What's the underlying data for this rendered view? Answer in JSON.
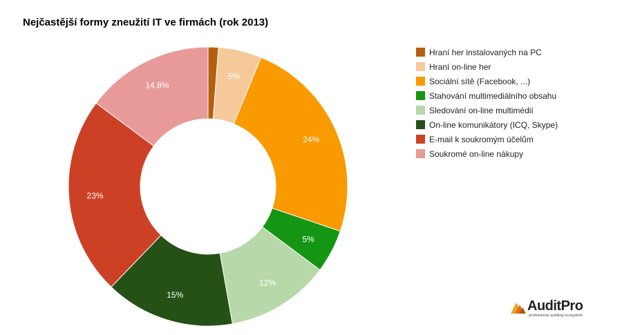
{
  "chart_data": {
    "type": "pie",
    "title": "Nejčastější formy zneužití IT ve firmách (rok 2013)",
    "legend_position": "right",
    "categories": [
      "Hraní her instalovaných na PC",
      "Hraní on-line her",
      "Sociální sítě (Facebook, ...)",
      "Stahování multimediálního obsahu",
      "Sledování on-line multimédií",
      "On-line komunikátory (ICQ, Skype)",
      "E-mail k soukromým účelům",
      "Soukromé on-line nákupy"
    ],
    "values": [
      1.2,
      5,
      24,
      5,
      12,
      15,
      23,
      14.8
    ],
    "data_labels": [
      "",
      "5%",
      "24%",
      "5%",
      "12%",
      "15%",
      "23%",
      "14.8%"
    ],
    "colors": [
      "#b5600f",
      "#f5c99a",
      "#f99a00",
      "#149614",
      "#b7d8a8",
      "#255016",
      "#cc4126",
      "#e89a98"
    ]
  },
  "logo": {
    "name": "AuditPro",
    "tagline": "professional auditing ecosystem"
  }
}
